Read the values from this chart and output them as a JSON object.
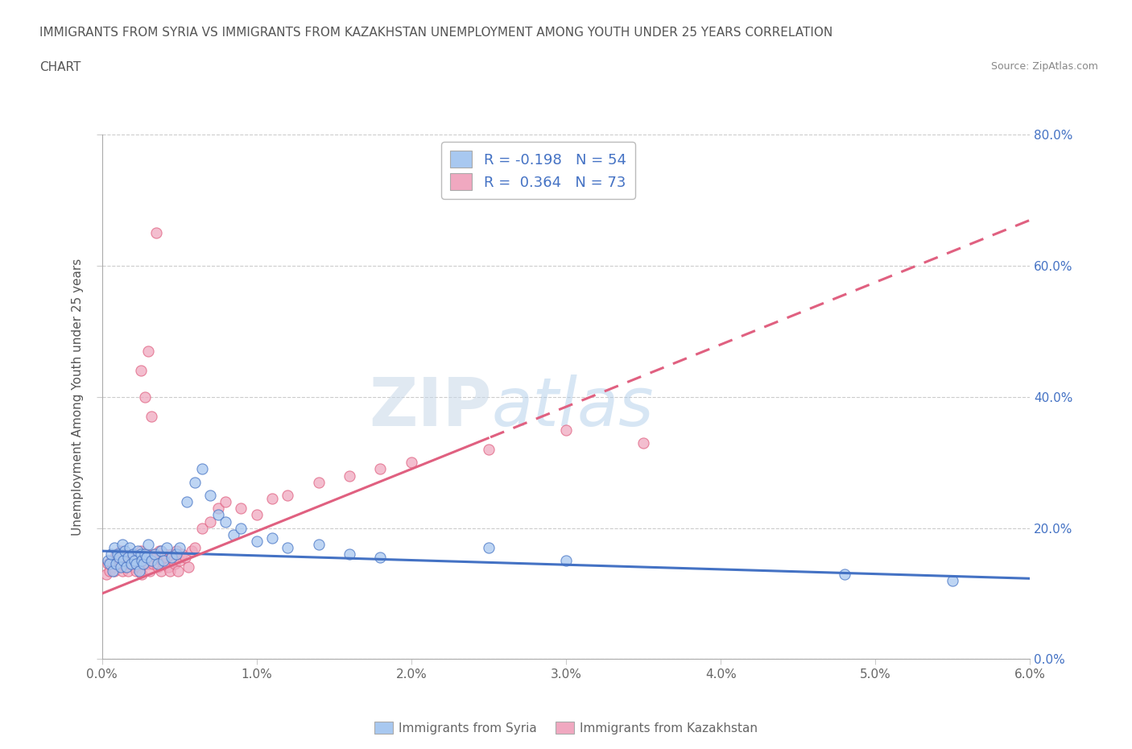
{
  "title_line1": "IMMIGRANTS FROM SYRIA VS IMMIGRANTS FROM KAZAKHSTAN UNEMPLOYMENT AMONG YOUTH UNDER 25 YEARS CORRELATION",
  "title_line2": "CHART",
  "source": "Source: ZipAtlas.com",
  "ylabel": "Unemployment Among Youth under 25 years",
  "xlim": [
    0.0,
    6.0
  ],
  "ylim": [
    0.0,
    80.0
  ],
  "yticks_right": [
    0.0,
    20.0,
    40.0,
    60.0,
    80.0
  ],
  "xticks": [
    0.0,
    1.0,
    2.0,
    3.0,
    4.0,
    5.0,
    6.0
  ],
  "syria_R": -0.198,
  "syria_N": 54,
  "kazakhstan_R": 0.364,
  "kazakhstan_N": 73,
  "syria_color": "#a8c8f0",
  "kazakhstan_color": "#f0a8c0",
  "syria_line_color": "#4472c4",
  "kazakhstan_line_color": "#e06080",
  "watermark_zip": "ZIP",
  "watermark_atlas": "atlas",
  "syria_scatter_x": [
    0.04,
    0.05,
    0.06,
    0.07,
    0.08,
    0.09,
    0.1,
    0.11,
    0.12,
    0.13,
    0.14,
    0.15,
    0.16,
    0.17,
    0.18,
    0.19,
    0.2,
    0.21,
    0.22,
    0.23,
    0.24,
    0.25,
    0.26,
    0.27,
    0.28,
    0.29,
    0.3,
    0.32,
    0.34,
    0.36,
    0.38,
    0.4,
    0.42,
    0.45,
    0.48,
    0.5,
    0.55,
    0.6,
    0.65,
    0.7,
    0.75,
    0.8,
    0.85,
    0.9,
    1.0,
    1.1,
    1.2,
    1.4,
    1.6,
    1.8,
    2.5,
    3.0,
    4.8,
    5.5
  ],
  "syria_scatter_y": [
    15.0,
    14.5,
    16.0,
    13.5,
    17.0,
    14.5,
    16.0,
    15.5,
    14.0,
    17.5,
    15.0,
    16.5,
    14.0,
    15.5,
    17.0,
    14.5,
    16.0,
    15.0,
    14.5,
    16.5,
    13.5,
    16.0,
    15.0,
    14.5,
    16.0,
    15.5,
    17.5,
    15.0,
    16.0,
    14.5,
    16.5,
    15.0,
    17.0,
    15.5,
    16.0,
    17.0,
    24.0,
    27.0,
    29.0,
    25.0,
    22.0,
    21.0,
    19.0,
    20.0,
    18.0,
    18.5,
    17.0,
    17.5,
    16.0,
    15.5,
    17.0,
    15.0,
    13.0,
    12.0
  ],
  "kazakhstan_scatter_x": [
    0.03,
    0.04,
    0.05,
    0.06,
    0.07,
    0.08,
    0.09,
    0.1,
    0.11,
    0.12,
    0.13,
    0.14,
    0.15,
    0.16,
    0.17,
    0.18,
    0.19,
    0.2,
    0.21,
    0.22,
    0.23,
    0.24,
    0.25,
    0.26,
    0.27,
    0.28,
    0.29,
    0.3,
    0.31,
    0.32,
    0.33,
    0.34,
    0.35,
    0.36,
    0.37,
    0.38,
    0.39,
    0.4,
    0.41,
    0.42,
    0.43,
    0.44,
    0.45,
    0.46,
    0.47,
    0.48,
    0.49,
    0.5,
    0.52,
    0.54,
    0.56,
    0.58,
    0.6,
    0.65,
    0.7,
    0.75,
    0.8,
    0.9,
    1.0,
    1.1,
    1.2,
    1.4,
    1.6,
    1.8,
    2.0,
    2.5,
    3.0,
    3.5,
    0.3,
    0.32,
    0.28,
    0.25,
    0.35
  ],
  "kazakhstan_scatter_y": [
    13.0,
    14.5,
    13.5,
    15.0,
    14.0,
    13.5,
    16.0,
    15.0,
    14.5,
    16.5,
    13.5,
    15.5,
    14.0,
    16.0,
    13.5,
    14.5,
    15.0,
    16.0,
    14.0,
    13.5,
    15.5,
    14.0,
    16.5,
    13.0,
    15.0,
    14.5,
    16.0,
    14.5,
    13.5,
    15.0,
    14.5,
    16.0,
    15.5,
    14.0,
    16.5,
    13.5,
    15.0,
    14.5,
    16.0,
    15.5,
    14.0,
    13.5,
    16.0,
    15.0,
    14.5,
    16.5,
    13.5,
    15.0,
    16.0,
    15.5,
    14.0,
    16.5,
    17.0,
    20.0,
    21.0,
    23.0,
    24.0,
    23.0,
    22.0,
    24.5,
    25.0,
    27.0,
    28.0,
    29.0,
    30.0,
    32.0,
    35.0,
    33.0,
    47.0,
    37.0,
    40.0,
    44.0,
    65.0
  ]
}
